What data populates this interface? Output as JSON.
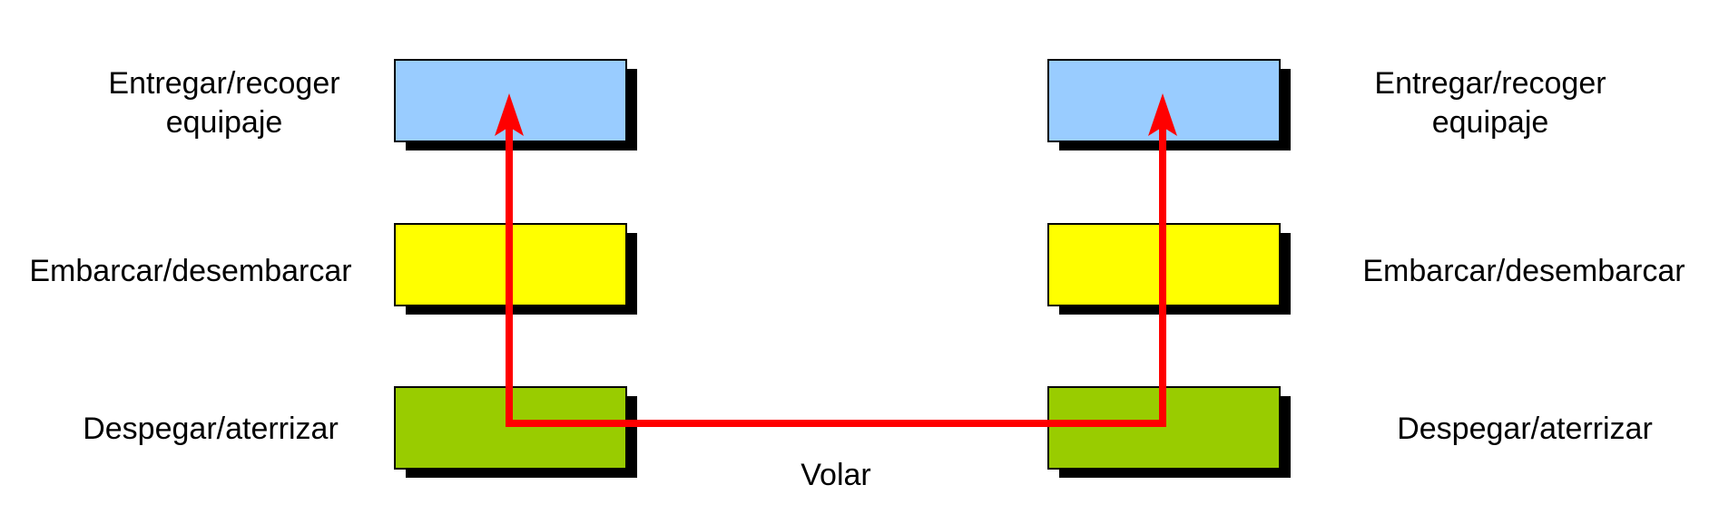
{
  "colors": {
    "baggage": "#99CCFF",
    "boarding": "#FFFF00",
    "runway": "#99CC00",
    "shadow": "#000000",
    "path": "#FF0000",
    "background": "#FFFFFF"
  },
  "left_stack": {
    "baggage_line1": "Entregar/recoger",
    "baggage_line2": "equipaje",
    "boarding": "Embarcar/desembarcar",
    "runway": "Despegar/aterrizar"
  },
  "right_stack": {
    "baggage_line1": "Entregar/recoger",
    "baggage_line2": "equipaje",
    "boarding": "Embarcar/desembarcar",
    "runway": "Despegar/aterrizar"
  },
  "flight_label": "Volar"
}
